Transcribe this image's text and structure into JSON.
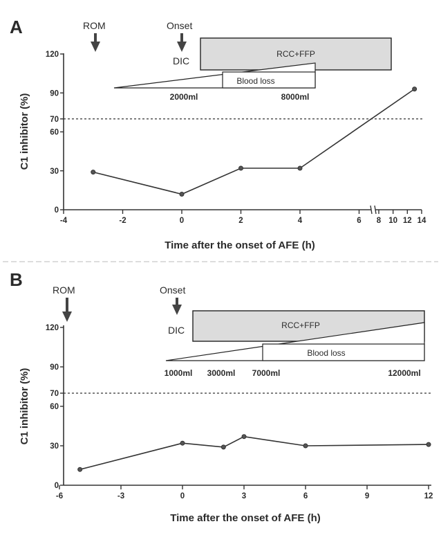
{
  "chart_data": [
    {
      "panel": "A",
      "type": "line",
      "xlabel": "Time after the onset of AFE (h)",
      "ylabel": "C1 inhibitor (%)",
      "ylim": [
        0,
        120
      ],
      "yticks": [
        0,
        30,
        60,
        70,
        90,
        120
      ],
      "xticks": [
        "-4",
        "-2",
        "0",
        "2",
        "4",
        "6",
        "8",
        "10",
        "12",
        "14"
      ],
      "x_axis_break": "between 6 and 8",
      "reference_line": {
        "y": 70,
        "style": "dashed"
      },
      "series": [
        {
          "x": [
            -3,
            0,
            2,
            4,
            13
          ],
          "values": [
            29,
            12,
            32,
            32,
            93
          ]
        }
      ],
      "annotations": {
        "rom": "ROM",
        "onset": "Onset",
        "dic": "DIC",
        "treatment": "RCC+FFP",
        "blood_loss": "Blood loss",
        "blood_loss_marks": [
          "2000ml",
          "8000ml"
        ]
      }
    },
    {
      "panel": "B",
      "type": "line",
      "xlabel": "Time after the onset of AFE (h)",
      "ylabel": "C1 inhibitor (%)",
      "ylim": [
        0,
        120
      ],
      "yticks": [
        0,
        30,
        60,
        70,
        90,
        120
      ],
      "xticks": [
        "-6",
        "-3",
        "0",
        "3",
        "6",
        "9",
        "12"
      ],
      "reference_line": {
        "y": 70,
        "style": "dashed"
      },
      "series": [
        {
          "x": [
            -5,
            0,
            2,
            3,
            6,
            12
          ],
          "values": [
            12,
            32,
            29,
            37,
            30,
            31
          ]
        }
      ],
      "annotations": {
        "rom": "ROM",
        "onset": "Onset",
        "dic": "DIC",
        "treatment": "RCC+FFP",
        "blood_loss": "Blood loss",
        "blood_loss_marks": [
          "1000ml",
          "3000ml",
          "7000ml",
          "12000ml"
        ]
      }
    }
  ]
}
